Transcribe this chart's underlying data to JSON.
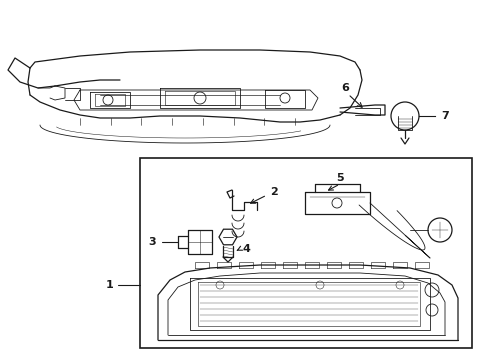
{
  "bg_color": "#ffffff",
  "line_color": "#1a1a1a",
  "fig_width": 4.9,
  "fig_height": 3.6,
  "dpi": 100,
  "label_fs": 8,
  "lw_main": 0.9,
  "lw_detail": 0.6
}
